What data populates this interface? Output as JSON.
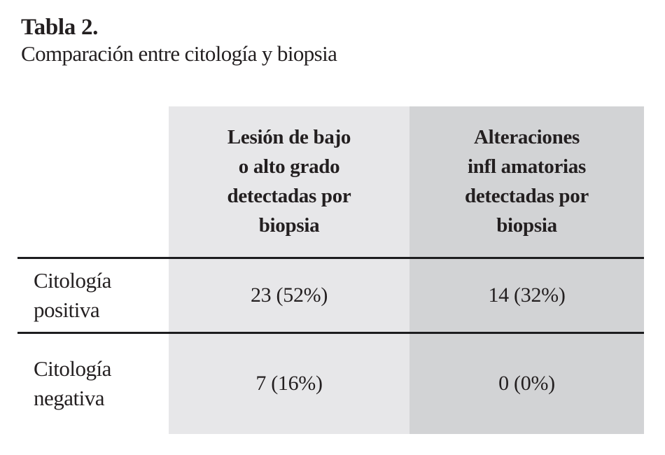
{
  "caption": {
    "number": "Tabla 2.",
    "text": "Comparación entre citología y biopsia"
  },
  "table": {
    "columns": [
      {
        "text": "Lesión de bajo o alto grado detectadas por biopsia",
        "lines": [
          "Lesión de bajo",
          "o alto grado",
          "detectadas por",
          "biopsia"
        ],
        "bg": "#e7e7e9"
      },
      {
        "text": "Alteraciones infl amatorias detectadas por biopsia",
        "lines": [
          "Alteraciones",
          "infl amatorias",
          "detectadas por",
          "biopsia"
        ],
        "bg": "#d2d3d5"
      }
    ],
    "rows": [
      {
        "label": "Citología positiva",
        "label_lines": [
          "Citología",
          "positiva"
        ],
        "values": [
          "23 (52%)",
          "14 (32%)"
        ]
      },
      {
        "label": "Citología negativa",
        "label_lines": [
          "Citología",
          "negativa"
        ],
        "values": [
          "7 (16%)",
          "0 (0%)"
        ]
      }
    ],
    "colors": {
      "column1_bg": "#e7e7e9",
      "column2_bg": "#d2d3d5",
      "rule": "#1d1d1f",
      "text": "#231f20",
      "page_bg": "#ffffff"
    }
  },
  "chart_data": {
    "type": "table",
    "title": "Tabla 2. Comparación entre citología y biopsia",
    "columns": [
      "",
      "Lesión de bajo o alto grado detectadas por biopsia",
      "Alteraciones infl amatorias detectadas por biopsia"
    ],
    "rows": [
      [
        "Citología positiva",
        "23 (52%)",
        "14 (32%)"
      ],
      [
        "Citología negativa",
        "7 (16%)",
        "0 (0%)"
      ]
    ]
  }
}
